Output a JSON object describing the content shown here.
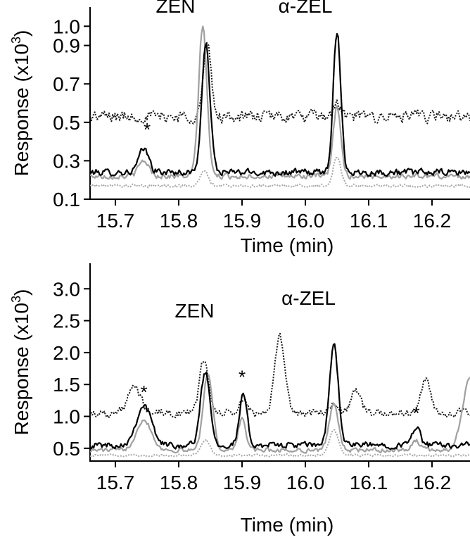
{
  "chart_data": [
    {
      "type": "line",
      "xlabel": "Time (min)",
      "ylabel_main": "Response (x10",
      "ylabel_sup": "3",
      "ylabel_close": ")",
      "xlim": [
        15.66,
        16.26
      ],
      "ylim": [
        0.1,
        1.1
      ],
      "xticks": [
        15.7,
        15.8,
        15.9,
        16.0,
        16.1,
        16.2
      ],
      "xtick_labels": [
        "15.7",
        "15.8",
        "15.9",
        "16.0",
        "16.1",
        "16.2"
      ],
      "yticks": [
        0.1,
        0.3,
        0.5,
        0.7,
        0.9,
        1.0
      ],
      "ytick_labels": [
        "0.1",
        "0.3",
        "0.5",
        "0.7",
        "0.9",
        "1.0"
      ],
      "annotations": [
        {
          "text": "ZEN",
          "x": 15.795,
          "y": 1.07
        },
        {
          "text": "α-ZEL",
          "x": 16.0,
          "y": 1.07
        },
        {
          "text": "*",
          "x": 15.75,
          "y": 0.43
        }
      ],
      "series": [
        {
          "style": "black-solid",
          "color": "#000000",
          "noise": 0.025,
          "baseline": 0.24,
          "peaks": [
            [
              15.745,
              0.12,
              0.008
            ],
            [
              15.843,
              0.66,
              0.0065
            ],
            [
              16.05,
              0.73,
              0.006
            ]
          ]
        },
        {
          "style": "gray-solid",
          "color": "#a0a0a0",
          "noise": 0.02,
          "baseline": 0.22,
          "peaks": [
            [
              15.745,
              0.08,
              0.008
            ],
            [
              15.838,
              0.78,
              0.0065
            ],
            [
              16.05,
              0.36,
              0.006
            ]
          ]
        },
        {
          "style": "black-dotted",
          "color": "#1a1a1a",
          "noise": 0.045,
          "baseline": 0.53,
          "peaks": [
            [
              15.845,
              0.38,
              0.006
            ],
            [
              16.05,
              0.06,
              0.006
            ]
          ]
        },
        {
          "style": "gray-dotted",
          "color": "#a8a8a8",
          "noise": 0.012,
          "baseline": 0.17,
          "peaks": [
            [
              15.84,
              0.08,
              0.006
            ],
            [
              16.05,
              0.15,
              0.006
            ]
          ]
        }
      ]
    },
    {
      "type": "line",
      "xlabel": "Time (min)",
      "ylabel_main": "Response (x10",
      "ylabel_sup": "3",
      "ylabel_close": ")",
      "xlim": [
        15.66,
        16.26
      ],
      "ylim": [
        0.3,
        3.4
      ],
      "xticks": [
        15.7,
        15.8,
        15.9,
        16.0,
        16.1,
        16.2
      ],
      "xtick_labels": [
        "15.7",
        "15.8",
        "15.9",
        "16.0",
        "16.1",
        "16.2"
      ],
      "yticks": [
        0.5,
        1.0,
        1.5,
        2.0,
        2.5,
        3.0
      ],
      "ytick_labels": [
        "0.5",
        "1.0",
        "1.5",
        "2.0",
        "2.5",
        "3.0"
      ],
      "annotations": [
        {
          "text": "ZEN",
          "x": 15.825,
          "y": 2.55
        },
        {
          "text": "α-ZEL",
          "x": 16.005,
          "y": 2.75
        },
        {
          "text": "*",
          "x": 15.745,
          "y": 1.28
        },
        {
          "text": "*",
          "x": 15.9,
          "y": 1.52
        },
        {
          "text": "*",
          "x": 16.175,
          "y": 0.95
        }
      ],
      "series": [
        {
          "style": "black-solid",
          "color": "#000000",
          "noise": 0.07,
          "baseline": 0.55,
          "peaks": [
            [
              15.745,
              0.62,
              0.012
            ],
            [
              15.842,
              1.15,
              0.0075
            ],
            [
              15.902,
              0.78,
              0.006
            ],
            [
              16.045,
              1.58,
              0.007
            ],
            [
              16.175,
              0.3,
              0.006
            ]
          ]
        },
        {
          "style": "gray-solid",
          "color": "#a0a0a0",
          "noise": 0.05,
          "baseline": 0.47,
          "peaks": [
            [
              15.745,
              0.48,
              0.012
            ],
            [
              15.846,
              1.2,
              0.0075
            ],
            [
              15.9,
              0.5,
              0.006
            ],
            [
              16.045,
              0.75,
              0.007
            ],
            [
              16.175,
              0.15,
              0.006
            ],
            [
              16.26,
              1.1,
              0.012
            ]
          ]
        },
        {
          "style": "black-dotted",
          "color": "#1a1a1a",
          "noise": 0.09,
          "baseline": 1.05,
          "peaks": [
            [
              15.73,
              0.4,
              0.01
            ],
            [
              15.84,
              0.85,
              0.007
            ],
            [
              15.902,
              0.2,
              0.006
            ],
            [
              15.96,
              1.18,
              0.008
            ],
            [
              16.045,
              0.15,
              0.007
            ],
            [
              16.08,
              0.35,
              0.008
            ],
            [
              16.19,
              0.5,
              0.008
            ]
          ]
        },
        {
          "style": "gray-dotted",
          "color": "#a8a8a8",
          "noise": 0.025,
          "baseline": 0.39,
          "peaks": [
            [
              15.842,
              0.25,
              0.007
            ],
            [
              16.045,
              0.4,
              0.007
            ]
          ]
        }
      ]
    }
  ]
}
